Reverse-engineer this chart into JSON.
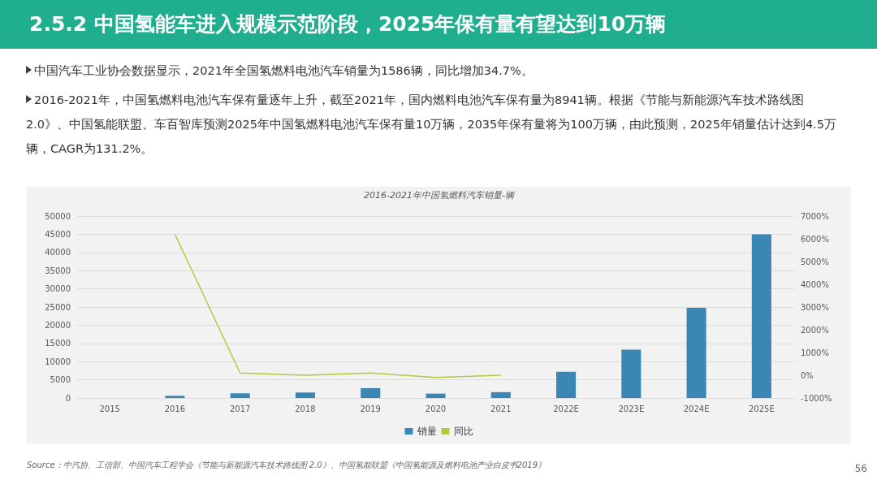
{
  "chart_data": {
    "type": "bar",
    "title": "2.5.2 中国氢能车进入规模示范阶段，2025年保有量有望达到10万辆",
    "subtitle": "2016-2021年中国氢燃料汽车销量-辆",
    "categories": [
      "2015",
      "2016",
      "2017",
      "2018",
      "2019",
      "2020",
      "2021",
      "2022E",
      "2023E",
      "2024E",
      "2025E"
    ],
    "series": [
      {
        "name": "销量",
        "color": "#3a87b5",
        "values": [
          null,
          600,
          1300,
          1500,
          2700,
          1200,
          1600,
          7200,
          13300,
          24800,
          45000
        ]
      },
      {
        "name": "同比",
        "type": "line",
        "axis": "y2",
        "color": "#b8c83c",
        "values": [
          null,
          6200,
          100,
          0,
          100,
          -100,
          0,
          null,
          null,
          null,
          null
        ]
      }
    ],
    "ylim": [
      0,
      50000
    ],
    "yticks": [
      0,
      5000,
      10000,
      15000,
      20000,
      25000,
      30000,
      35000,
      40000,
      45000,
      50000
    ],
    "y2lim": [
      -1000,
      7000
    ],
    "y2ticks": [
      {
        "value": -1000,
        "label": "-1000%"
      },
      {
        "value": 0,
        "label": "0%"
      },
      {
        "value": 1000,
        "label": "1000%"
      },
      {
        "value": 2000,
        "label": "2000%"
      },
      {
        "value": 3000,
        "label": "3000%"
      },
      {
        "value": 4000,
        "label": "4000%"
      },
      {
        "value": 5000,
        "label": "5000%"
      },
      {
        "value": 6000,
        "label": "6000%"
      },
      {
        "value": 7000,
        "label": "7000%"
      }
    ],
    "grid": "y",
    "legend": "bottom",
    "marker": "none",
    "annotations": [
      "中国汽车工业协会数据显示，2021年全国氢燃料电池汽车销量为1586辆，同比增加34.7%。",
      "2016-2021年，中国氢燃料电池汽车保有量逐年上升，截至2021年，国内燃料电池汽车保有量为8941辆。根据《节能与新能源汽车技术路线图 2.0》、中国氢能联盟、车百智库预测2025年中国氢燃料电池汽车保有量10万辆，2035年保有量将为100万辆，由此预测，2025年销量估计达到4.5万辆，CAGR为131.2%。",
      "Source：中汽协、工信部、中国汽车工程学会《节能与新能源汽车技术路线图 2.0》、中国氢能联盟《中国氢能源及燃料电池产业白皮书2019》",
      "56"
    ]
  }
}
